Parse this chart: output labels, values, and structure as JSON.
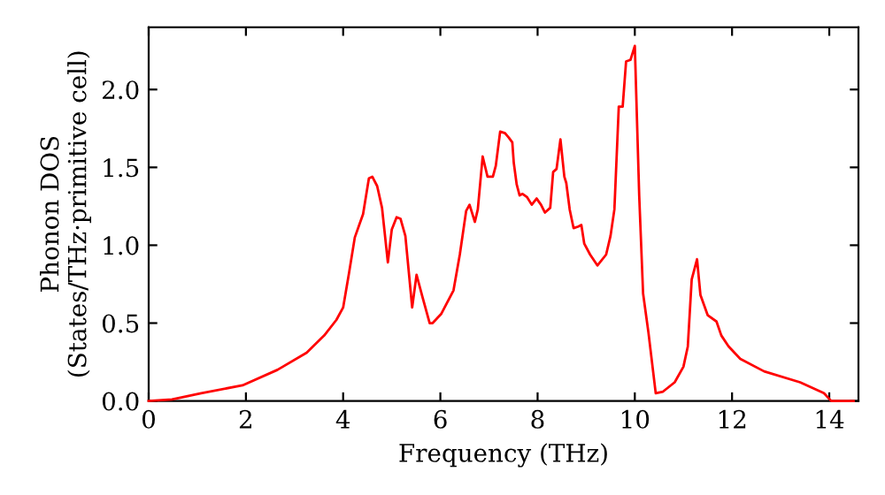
{
  "chart_data": {
    "type": "line",
    "xlabel": "Frequency (THz)",
    "ylabel": "Phonon DOS\n(States/THz·primitive cell)",
    "series": [
      {
        "color": "#ff0000",
        "x": [
          0,
          0.48,
          1.08,
          1.93,
          2.65,
          3.25,
          3.61,
          3.86,
          4.0,
          4.12,
          4.24,
          4.41,
          4.53,
          4.6,
          4.7,
          4.8,
          4.92,
          5.0,
          5.1,
          5.18,
          5.28,
          5.42,
          5.51,
          5.63,
          5.78,
          5.84,
          6.02,
          6.27,
          6.4,
          6.53,
          6.6,
          6.71,
          6.77,
          6.87,
          6.97,
          7.08,
          7.14,
          7.23,
          7.33,
          7.41,
          7.48,
          7.51,
          7.57,
          7.63,
          7.69,
          7.78,
          7.88,
          7.98,
          8.07,
          8.15,
          8.26,
          8.32,
          8.39,
          8.47,
          8.55,
          8.59,
          8.66,
          8.74,
          8.84,
          8.9,
          8.96,
          9.08,
          9.23,
          9.41,
          9.5,
          9.58,
          9.67,
          9.75,
          9.82,
          9.91,
          10.0,
          10.09,
          10.17,
          10.28,
          10.43,
          10.58,
          10.82,
          11.0,
          11.09,
          11.17,
          11.28,
          11.35,
          11.5,
          11.68,
          11.78,
          11.93,
          12.17,
          12.66,
          13.4,
          13.89,
          14.04,
          14.5
        ],
        "values": [
          0,
          0.01,
          0.05,
          0.1,
          0.2,
          0.31,
          0.42,
          0.52,
          0.6,
          0.82,
          1.05,
          1.2,
          1.43,
          1.44,
          1.38,
          1.24,
          0.89,
          1.1,
          1.18,
          1.17,
          1.06,
          0.6,
          0.81,
          0.67,
          0.5,
          0.5,
          0.56,
          0.71,
          0.94,
          1.22,
          1.26,
          1.15,
          1.23,
          1.57,
          1.44,
          1.44,
          1.51,
          1.73,
          1.72,
          1.69,
          1.66,
          1.53,
          1.39,
          1.32,
          1.33,
          1.31,
          1.26,
          1.3,
          1.26,
          1.21,
          1.24,
          1.47,
          1.49,
          1.68,
          1.44,
          1.4,
          1.23,
          1.11,
          1.12,
          1.13,
          1.01,
          0.94,
          0.87,
          0.94,
          1.06,
          1.23,
          1.89,
          1.89,
          2.18,
          2.19,
          2.28,
          1.32,
          0.69,
          0.44,
          0.05,
          0.06,
          0.12,
          0.22,
          0.35,
          0.78,
          0.91,
          0.68,
          0.55,
          0.51,
          0.42,
          0.35,
          0.27,
          0.19,
          0.12,
          0.05,
          0,
          0
        ]
      }
    ],
    "xlim": [
      0,
      14.6
    ],
    "ylim": [
      0,
      2.4
    ],
    "xticks": [
      0,
      2,
      4,
      6,
      8,
      10,
      12,
      14
    ],
    "yticks": [
      {
        "value": 0,
        "label": "0.0"
      },
      {
        "value": 0.5,
        "label": "0.5"
      },
      {
        "value": 1,
        "label": "1.0"
      },
      {
        "value": 1.5,
        "label": "1.5"
      },
      {
        "value": 2,
        "label": "2.0"
      }
    ],
    "grid": false,
    "legend": false,
    "marker": "none",
    "line_style": "solid"
  }
}
